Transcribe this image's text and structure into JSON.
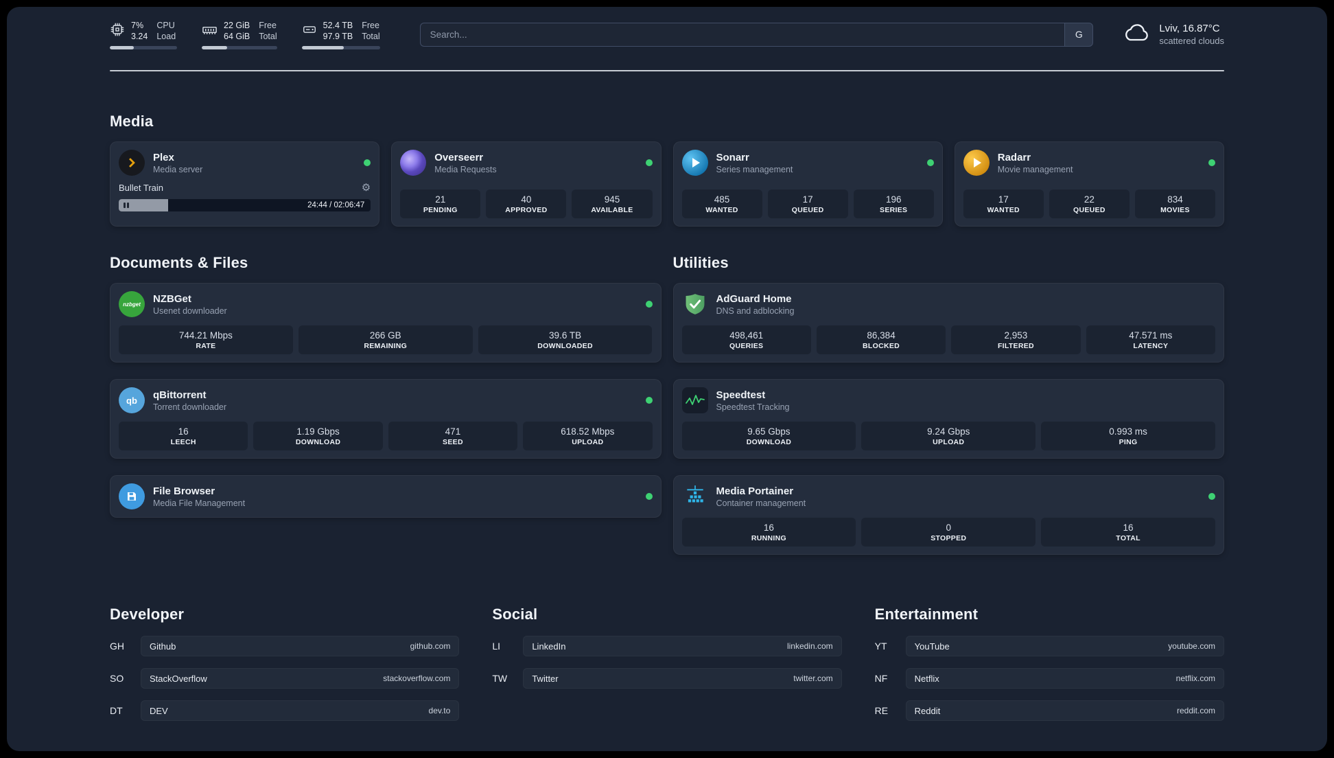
{
  "colors": {
    "status_online": "#3ed173",
    "plex_amber": "#e5a00d",
    "adguard_green": "#5fb46b",
    "portainer_blue": "#2fb5e8",
    "speedtest_green": "#3ed173"
  },
  "topbar": {
    "cpu": {
      "values": [
        "7%",
        "3.24"
      ],
      "labels": [
        "CPU",
        "Load"
      ],
      "bar_percent": 36
    },
    "ram": {
      "values": [
        "22 GiB",
        "64 GiB"
      ],
      "labels": [
        "Free",
        "Total"
      ],
      "bar_percent": 34
    },
    "disk": {
      "values": [
        "52.4 TB",
        "97.9 TB"
      ],
      "labels": [
        "Free",
        "Total"
      ],
      "bar_percent": 54
    },
    "search": {
      "placeholder": "Search...",
      "button_label": "G"
    },
    "weather": {
      "location": "Lviv, 16.87°C",
      "condition": "scattered clouds"
    }
  },
  "sections": {
    "media": "Media",
    "documents": "Documents & Files",
    "utilities": "Utilities"
  },
  "services": {
    "plex": {
      "name": "Plex",
      "subtitle": "Media server",
      "player": {
        "now_playing": "Bullet Train",
        "time": "24:44 / 02:06:47",
        "progress_percent": 19.5
      }
    },
    "overseerr": {
      "name": "Overseerr",
      "subtitle": "Media Requests",
      "stats": [
        {
          "value": "21",
          "label": "PENDING"
        },
        {
          "value": "40",
          "label": "APPROVED"
        },
        {
          "value": "945",
          "label": "AVAILABLE"
        }
      ]
    },
    "sonarr": {
      "name": "Sonarr",
      "subtitle": "Series management",
      "stats": [
        {
          "value": "485",
          "label": "WANTED"
        },
        {
          "value": "17",
          "label": "QUEUED"
        },
        {
          "value": "196",
          "label": "SERIES"
        }
      ]
    },
    "radarr": {
      "name": "Radarr",
      "subtitle": "Movie management",
      "stats": [
        {
          "value": "17",
          "label": "WANTED"
        },
        {
          "value": "22",
          "label": "QUEUED"
        },
        {
          "value": "834",
          "label": "MOVIES"
        }
      ]
    },
    "nzbget": {
      "name": "NZBGet",
      "subtitle": "Usenet downloader",
      "icon_text": "nzbget",
      "stats": [
        {
          "value": "744.21 Mbps",
          "label": "RATE"
        },
        {
          "value": "266 GB",
          "label": "REMAINING"
        },
        {
          "value": "39.6 TB",
          "label": "DOWNLOADED"
        }
      ]
    },
    "qbittorrent": {
      "name": "qBittorrent",
      "subtitle": "Torrent downloader",
      "icon_text": "qb",
      "stats": [
        {
          "value": "16",
          "label": "LEECH"
        },
        {
          "value": "1.19 Gbps",
          "label": "DOWNLOAD"
        },
        {
          "value": "471",
          "label": "SEED"
        },
        {
          "value": "618.52 Mbps",
          "label": "UPLOAD"
        }
      ]
    },
    "filebrowser": {
      "name": "File Browser",
      "subtitle": "Media File Management"
    },
    "adguard": {
      "name": "AdGuard Home",
      "subtitle": "DNS and adblocking",
      "stats": [
        {
          "value": "498,461",
          "label": "QUERIES"
        },
        {
          "value": "86,384",
          "label": "BLOCKED"
        },
        {
          "value": "2,953",
          "label": "FILTERED"
        },
        {
          "value": "47.571 ms",
          "label": "LATENCY"
        }
      ]
    },
    "speedtest": {
      "name": "Speedtest",
      "subtitle": "Speedtest Tracking",
      "stats": [
        {
          "value": "9.65 Gbps",
          "label": "DOWNLOAD"
        },
        {
          "value": "9.24 Gbps",
          "label": "UPLOAD"
        },
        {
          "value": "0.993 ms",
          "label": "PING"
        }
      ]
    },
    "portainer": {
      "name": "Media Portainer",
      "subtitle": "Container management",
      "stats": [
        {
          "value": "16",
          "label": "RUNNING"
        },
        {
          "value": "0",
          "label": "STOPPED"
        },
        {
          "value": "16",
          "label": "TOTAL"
        }
      ]
    }
  },
  "bookmarks": {
    "developer": {
      "title": "Developer",
      "items": [
        {
          "abbr": "GH",
          "name": "Github",
          "url": "github.com"
        },
        {
          "abbr": "SO",
          "name": "StackOverflow",
          "url": "stackoverflow.com"
        },
        {
          "abbr": "DT",
          "name": "DEV",
          "url": "dev.to"
        }
      ]
    },
    "social": {
      "title": "Social",
      "items": [
        {
          "abbr": "LI",
          "name": "LinkedIn",
          "url": "linkedin.com"
        },
        {
          "abbr": "TW",
          "name": "Twitter",
          "url": "twitter.com"
        }
      ]
    },
    "entertainment": {
      "title": "Entertainment",
      "items": [
        {
          "abbr": "YT",
          "name": "YouTube",
          "url": "youtube.com"
        },
        {
          "abbr": "NF",
          "name": "Netflix",
          "url": "netflix.com"
        },
        {
          "abbr": "RE",
          "name": "Reddit",
          "url": "reddit.com"
        }
      ]
    }
  }
}
